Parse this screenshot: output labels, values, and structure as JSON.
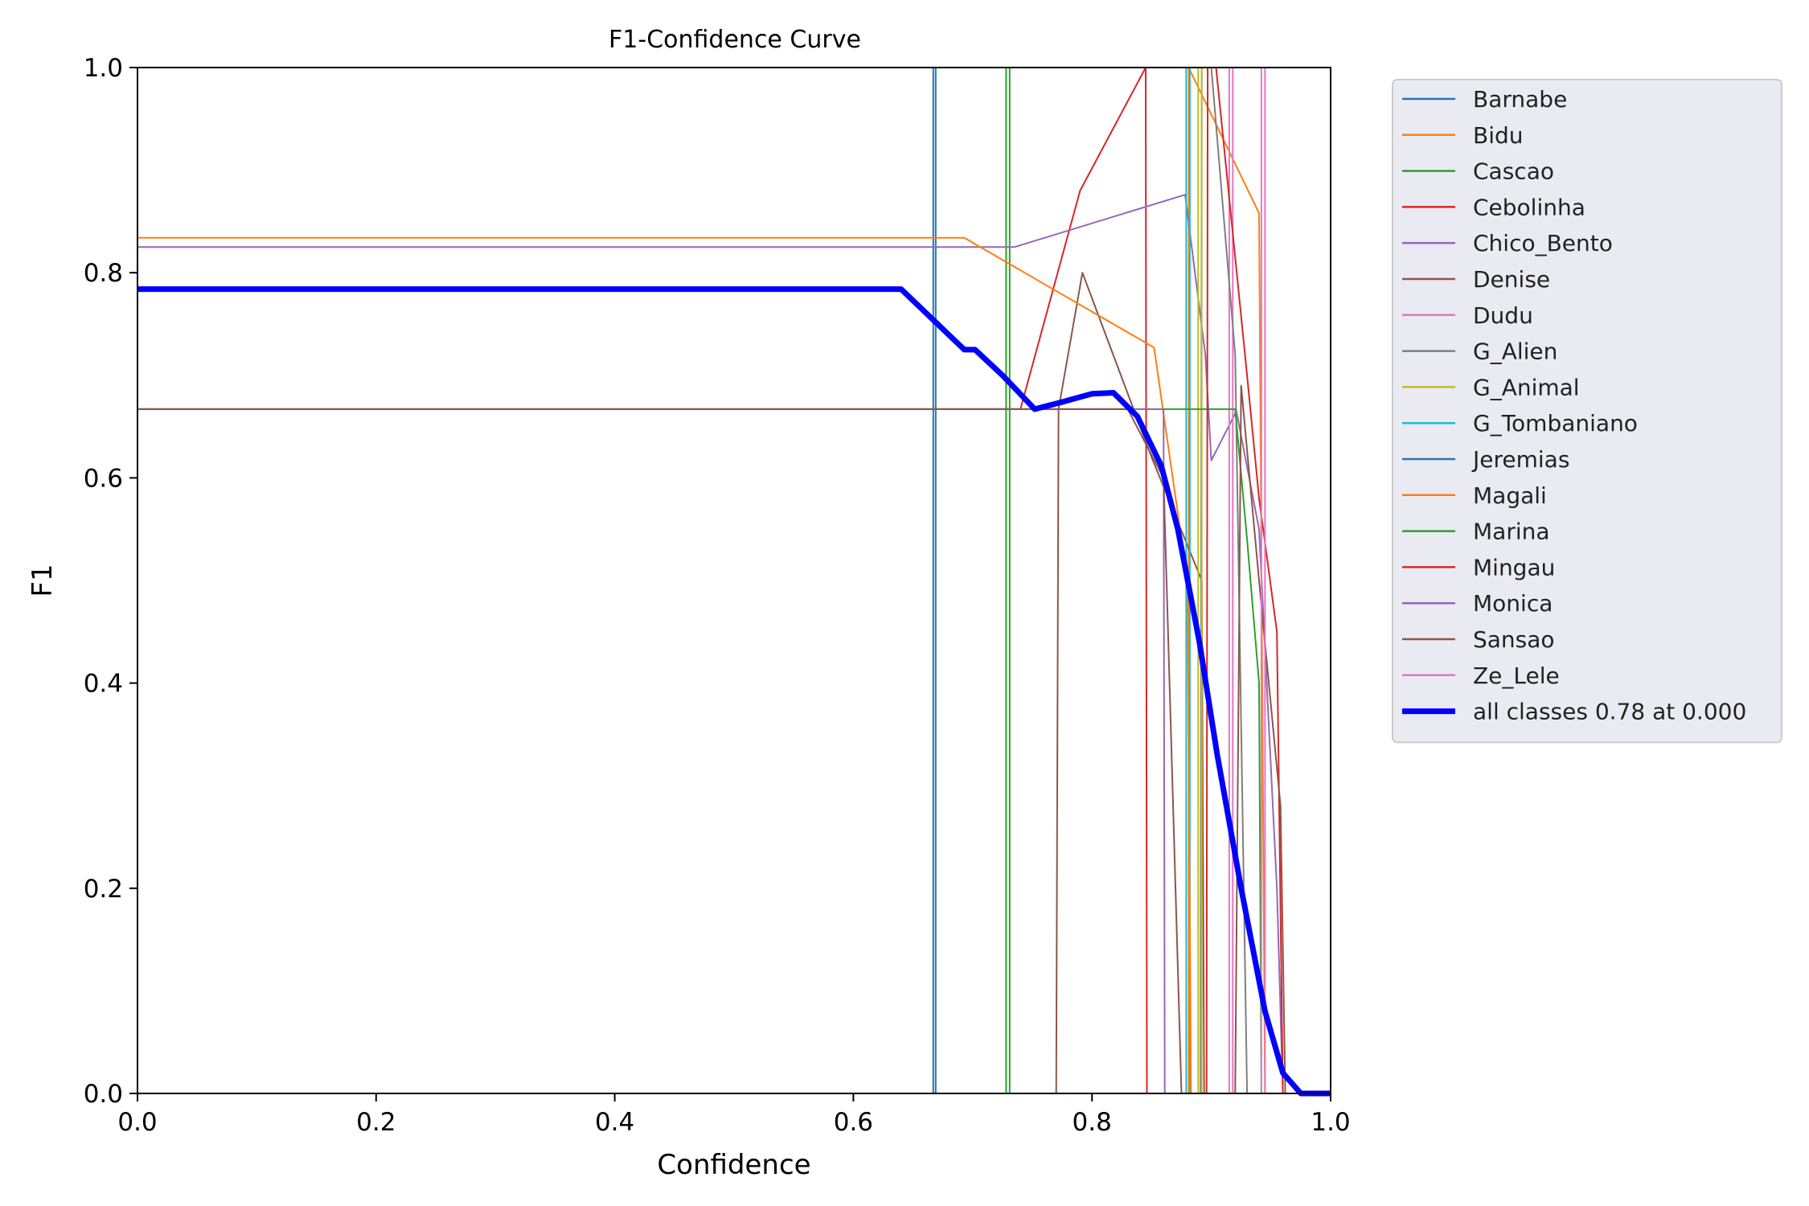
{
  "chart_data": {
    "type": "line",
    "title": "F1-Confidence Curve",
    "xlabel": "Confidence",
    "ylabel": "F1",
    "xlim": [
      0.0,
      1.0
    ],
    "ylim": [
      0.0,
      1.0
    ],
    "xticks": [
      "0.0",
      "0.2",
      "0.4",
      "0.6",
      "0.8",
      "1.0"
    ],
    "yticks": [
      "0.0",
      "0.2",
      "0.4",
      "0.6",
      "0.8",
      "1.0"
    ],
    "grid": false,
    "legend_position": "outside-right-top",
    "series": [
      {
        "name": "Barnabe",
        "color": "#1f77b4",
        "width": 2,
        "points": [
          [
            0.0,
            0.0
          ],
          [
            0.667,
            0.0
          ],
          [
            0.667,
            1.0
          ],
          [
            0.669,
            1.0
          ],
          [
            0.669,
            0.0
          ],
          [
            1.0,
            0.0
          ]
        ]
      },
      {
        "name": "Bidu",
        "color": "#ff7f0e",
        "width": 2,
        "points": [
          [
            0.0,
            0.0
          ],
          [
            0.881,
            0.0
          ],
          [
            0.881,
            1.0
          ],
          [
            0.94,
            0.858
          ],
          [
            0.945,
            0.0
          ],
          [
            1.0,
            0.0
          ]
        ]
      },
      {
        "name": "Cascao",
        "color": "#2ca02c",
        "width": 2,
        "points": [
          [
            0.0,
            0.0
          ],
          [
            0.728,
            0.0
          ],
          [
            0.728,
            1.0
          ],
          [
            0.731,
            1.0
          ],
          [
            0.731,
            0.0
          ],
          [
            1.0,
            0.0
          ]
        ]
      },
      {
        "name": "Cebolinha",
        "color": "#d62728",
        "width": 2,
        "points": [
          [
            0.0,
            0.667
          ],
          [
            0.74,
            0.667
          ],
          [
            0.79,
            0.88
          ],
          [
            0.845,
            1.0
          ],
          [
            0.846,
            0.0
          ],
          [
            1.0,
            0.0
          ]
        ]
      },
      {
        "name": "Chico_Bento",
        "color": "#9467bd",
        "width": 2,
        "points": [
          [
            0.0,
            0.825
          ],
          [
            0.735,
            0.825
          ],
          [
            0.878,
            0.876
          ],
          [
            0.895,
            0.72
          ],
          [
            0.9,
            0.617
          ],
          [
            0.921,
            0.665
          ],
          [
            0.94,
            0.55
          ],
          [
            0.955,
            0.2
          ],
          [
            0.96,
            0.0
          ],
          [
            1.0,
            0.0
          ]
        ]
      },
      {
        "name": "Denise",
        "color": "#8c564b",
        "width": 2,
        "points": [
          [
            0.0,
            0.0
          ],
          [
            0.77,
            0.0
          ],
          [
            0.772,
            0.667
          ],
          [
            0.792,
            0.8
          ],
          [
            0.85,
            0.62
          ],
          [
            0.892,
            0.5
          ],
          [
            0.894,
            0.0
          ],
          [
            1.0,
            0.0
          ]
        ]
      },
      {
        "name": "Dudu",
        "color": "#e377c2",
        "width": 2,
        "points": [
          [
            0.0,
            0.0
          ],
          [
            0.915,
            0.0
          ],
          [
            0.915,
            1.0
          ],
          [
            0.918,
            1.0
          ],
          [
            0.918,
            0.0
          ],
          [
            1.0,
            0.0
          ]
        ]
      },
      {
        "name": "G_Alien",
        "color": "#7f7f7f",
        "width": 2,
        "points": [
          [
            0.0,
            0.0
          ],
          [
            0.891,
            0.0
          ],
          [
            0.892,
            1.0
          ],
          [
            0.9,
            1.0
          ],
          [
            0.92,
            0.72
          ],
          [
            0.93,
            0.0
          ],
          [
            1.0,
            0.0
          ]
        ]
      },
      {
        "name": "G_Animal",
        "color": "#bcbd22",
        "width": 2,
        "points": [
          [
            0.0,
            0.0
          ],
          [
            0.889,
            0.0
          ],
          [
            0.889,
            1.0
          ],
          [
            0.892,
            1.0
          ],
          [
            0.892,
            0.0
          ],
          [
            1.0,
            0.0
          ]
        ]
      },
      {
        "name": "G_Tombaniano",
        "color": "#17becf",
        "width": 2,
        "points": [
          [
            0.0,
            0.0
          ],
          [
            0.879,
            0.0
          ],
          [
            0.879,
            1.0
          ],
          [
            0.882,
            1.0
          ],
          [
            0.882,
            0.0
          ],
          [
            1.0,
            0.0
          ]
        ]
      },
      {
        "name": "Jeremias",
        "color": "#1f77b4",
        "width": 2,
        "points": [
          [
            0.0,
            0.0
          ],
          [
            0.67,
            0.0
          ]
        ]
      },
      {
        "name": "Magali",
        "color": "#ff7f0e",
        "width": 2,
        "points": [
          [
            0.0,
            0.834
          ],
          [
            0.693,
            0.834
          ],
          [
            0.852,
            0.727
          ],
          [
            0.88,
            0.5
          ],
          [
            0.883,
            0.0
          ],
          [
            1.0,
            0.0
          ]
        ]
      },
      {
        "name": "Marina",
        "color": "#2ca02c",
        "width": 2,
        "points": [
          [
            0.0,
            0.667
          ],
          [
            0.92,
            0.667
          ],
          [
            0.93,
            0.54
          ],
          [
            0.94,
            0.4
          ],
          [
            0.942,
            0.0
          ],
          [
            1.0,
            0.0
          ]
        ]
      },
      {
        "name": "Mingau",
        "color": "#d62728",
        "width": 2,
        "points": [
          [
            0.0,
            0.0
          ],
          [
            0.896,
            0.0
          ],
          [
            0.897,
            1.0
          ],
          [
            0.904,
            1.0
          ],
          [
            0.93,
            0.7
          ],
          [
            0.94,
            0.58
          ],
          [
            0.955,
            0.45
          ],
          [
            0.96,
            0.0
          ],
          [
            1.0,
            0.0
          ]
        ]
      },
      {
        "name": "Monica",
        "color": "#9467bd",
        "width": 2,
        "points": [
          [
            0.0,
            0.667
          ],
          [
            0.86,
            0.667
          ],
          [
            0.861,
            0.0
          ],
          [
            1.0,
            0.0
          ]
        ]
      },
      {
        "name": "Sansao",
        "color": "#8c564b",
        "width": 2,
        "points": [
          [
            0.0,
            0.667
          ],
          [
            0.755,
            0.667
          ],
          [
            0.83,
            0.667
          ],
          [
            0.86,
            0.6
          ],
          [
            0.875,
            0.0
          ],
          [
            0.92,
            0.0
          ],
          [
            0.925,
            0.69
          ],
          [
            0.94,
            0.5
          ],
          [
            0.958,
            0.28
          ],
          [
            0.962,
            0.0
          ],
          [
            1.0,
            0.0
          ]
        ]
      },
      {
        "name": "Ze_Lele",
        "color": "#e377c2",
        "width": 2,
        "points": [
          [
            0.0,
            0.0
          ],
          [
            0.942,
            0.0
          ],
          [
            0.942,
            1.0
          ],
          [
            0.945,
            1.0
          ],
          [
            0.945,
            0.0
          ],
          [
            1.0,
            0.0
          ]
        ]
      },
      {
        "name": "all classes 0.78 at 0.000",
        "color": "#0000ff",
        "width": 7,
        "points": [
          [
            0.0,
            0.784
          ],
          [
            0.64,
            0.784
          ],
          [
            0.693,
            0.725
          ],
          [
            0.702,
            0.725
          ],
          [
            0.725,
            0.7
          ],
          [
            0.752,
            0.667
          ],
          [
            0.775,
            0.674
          ],
          [
            0.8,
            0.682
          ],
          [
            0.818,
            0.683
          ],
          [
            0.838,
            0.66
          ],
          [
            0.858,
            0.612
          ],
          [
            0.872,
            0.55
          ],
          [
            0.89,
            0.44
          ],
          [
            0.905,
            0.33
          ],
          [
            0.925,
            0.2
          ],
          [
            0.945,
            0.08
          ],
          [
            0.96,
            0.02
          ],
          [
            0.975,
            0.0
          ],
          [
            1.0,
            0.0
          ]
        ]
      }
    ]
  }
}
